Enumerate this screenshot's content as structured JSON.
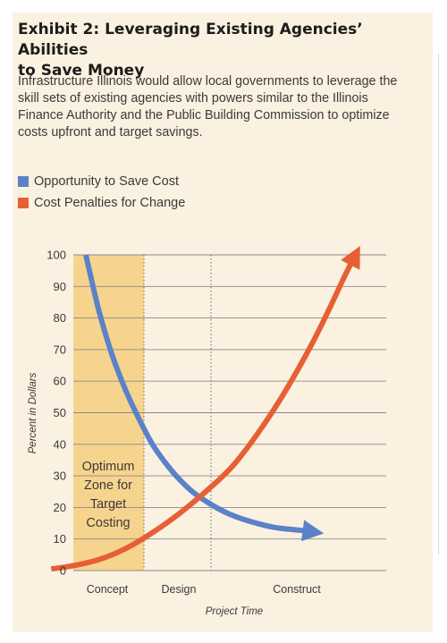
{
  "exhibit": {
    "title_line1": "Exhibit 2: Leveraging Existing Agencies’ Abilities",
    "title_line2": "to Save Money",
    "description": "Infrastructure Illinois would allow local governments to leverage the skill sets of existing agencies with powers similar to the Illinois Finance Authority and the Public Building Commission to optimize costs upfront and target savings."
  },
  "colors": {
    "panel": "#fbf1e0",
    "zone": "#f7d48e",
    "blue": "#5b82c8",
    "orange": "#e65f35",
    "grid": "#8a8a8a",
    "text": "#3a3a3a"
  },
  "chart_data": {
    "type": "line",
    "title": "",
    "xlabel": "Project Time",
    "ylabel": "Percent in Dollars",
    "ylim": [
      0,
      100
    ],
    "yticks": [
      0,
      10,
      20,
      30,
      40,
      50,
      60,
      70,
      80,
      90,
      100
    ],
    "phases": [
      "Concept",
      "Design",
      "Construct"
    ],
    "zone_label": [
      "Optimum",
      "Zone for",
      "Target",
      "Costing"
    ],
    "grid": true,
    "legend_position": "top-left",
    "series": [
      {
        "name": "Opportunity to Save Cost",
        "color": "#5b82c8",
        "points": [
          [
            0.0,
            100
          ],
          [
            0.05,
            82
          ],
          [
            0.1,
            68
          ],
          [
            0.15,
            57
          ],
          [
            0.2,
            48
          ],
          [
            0.25,
            40
          ],
          [
            0.3,
            34
          ],
          [
            0.35,
            29
          ],
          [
            0.4,
            25
          ],
          [
            0.45,
            22
          ],
          [
            0.5,
            19.5
          ],
          [
            0.55,
            17.5
          ],
          [
            0.6,
            16
          ],
          [
            0.65,
            14.8
          ],
          [
            0.7,
            13.8
          ],
          [
            0.75,
            13.2
          ],
          [
            0.8,
            12.8
          ],
          [
            0.83,
            12.5
          ]
        ]
      },
      {
        "name": "Cost Penalties for Change",
        "color": "#e65f35",
        "points": [
          [
            -0.13,
            0.5
          ],
          [
            -0.05,
            1.5
          ],
          [
            0.05,
            3.5
          ],
          [
            0.15,
            7
          ],
          [
            0.25,
            12
          ],
          [
            0.35,
            18
          ],
          [
            0.45,
            25
          ],
          [
            0.55,
            33
          ],
          [
            0.65,
            44
          ],
          [
            0.75,
            57
          ],
          [
            0.85,
            72
          ],
          [
            0.92,
            84
          ],
          [
            0.97,
            93
          ],
          [
            1.0,
            98
          ]
        ]
      }
    ]
  }
}
